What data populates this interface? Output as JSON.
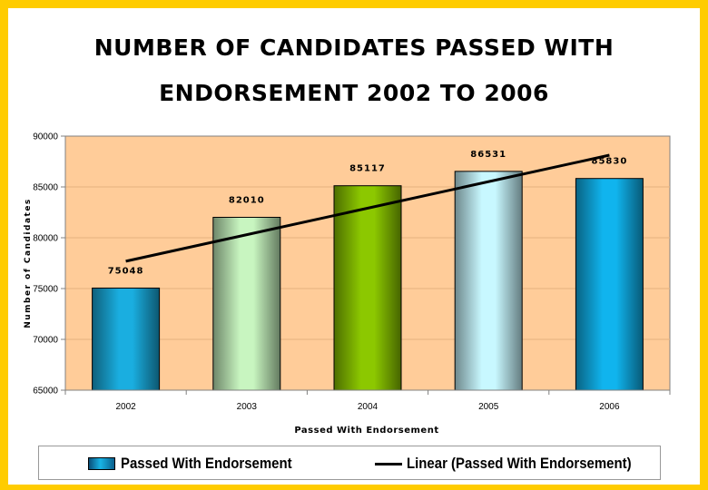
{
  "title_lines": [
    "NUMBER OF CANDIDATES PASSED WITH",
    "ENDORSEMENT 2002 TO 2006"
  ],
  "colors": {
    "plot_background": "#ffcc99",
    "frame_border": "#ffcc00"
  },
  "chart_data": {
    "type": "bar",
    "title": "NUMBER OF CANDIDATES PASSED WITH ENDORSEMENT 2002 TO 2006",
    "categories": [
      "2002",
      "2003",
      "2004",
      "2005",
      "2006"
    ],
    "series": [
      {
        "name": "Passed With Endorsement",
        "values": [
          75048,
          82010,
          85117,
          86531,
          85830
        ],
        "data_labels": [
          "75048",
          "82010",
          "85117",
          "86531",
          "85830"
        ],
        "bar_colors": [
          "#1aaee0",
          "#c8f5c0",
          "#8cc800",
          "#c8f8ff",
          "#10b4ee"
        ]
      }
    ],
    "trendline": {
      "name": "Linear (Passed With Endorsement)",
      "type": "linear"
    },
    "xlabel": "Passed With Endorsement",
    "ylabel": "Number of Candidates",
    "ylim": [
      65000,
      90000
    ],
    "yticks": [
      "65000",
      "70000",
      "75000",
      "80000",
      "85000",
      "90000"
    ],
    "grid": true,
    "legend_position": "bottom"
  }
}
